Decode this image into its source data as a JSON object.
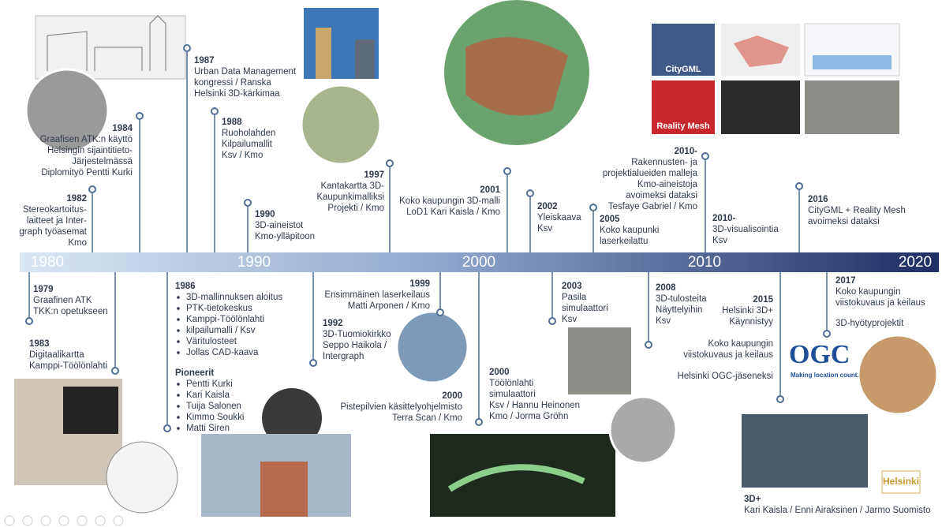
{
  "axis": {
    "decades": [
      "1980",
      "1990",
      "2000",
      "2010",
      "2020"
    ]
  },
  "events_above": [
    {
      "year": "1982",
      "lines": [
        "Stereokartoitus-",
        "laitteet ja Inter-",
        "graph työasemat",
        "Kmo"
      ]
    },
    {
      "year": "1984",
      "lines": [
        "Graafisen ATK:n käyttö",
        "Helsingin sijaintitieto-",
        "Järjestelmässä",
        "Diplomityö Pentti Kurki"
      ]
    },
    {
      "year": "1987",
      "lines": [
        "Urban Data Management",
        "kongressi /  Ranska",
        "Helsinki 3D-kärkimaa"
      ]
    },
    {
      "year": "1988",
      "lines": [
        "Ruoholahden",
        "Kilpailumallit",
        "Ksv / Kmo"
      ]
    },
    {
      "year": "1990",
      "lines": [
        "3D-aineistot",
        "Kmo-ylläpitoon"
      ]
    },
    {
      "year": "1997",
      "lines": [
        "Kantakartta 3D-",
        "Kaupunkimalliksi",
        "Projekti / Kmo"
      ]
    },
    {
      "year": "2001",
      "lines": [
        "Koko kaupungin 3D-malli",
        "LoD1  Kari Kaisla / Kmo"
      ]
    },
    {
      "year": "2002",
      "lines": [
        "Yleiskaava",
        "Ksv"
      ]
    },
    {
      "year": "2005",
      "lines": [
        "Koko kaupunki",
        "laserkeilattu"
      ]
    },
    {
      "year": "2010-",
      "lines": [
        "Rakennusten- ja",
        "projektialueiden malleja",
        "Kmo-aineistoja",
        "avoimeksi dataksi",
        "Tesfaye Gabriel / Kmo"
      ]
    },
    {
      "year": "2010-",
      "lines": [
        "3D-visualisointia",
        "Ksv"
      ]
    },
    {
      "year": "2016",
      "lines": [
        "CityGML + Reality Mesh",
        "avoimeksi dataksi"
      ]
    }
  ],
  "events_below": [
    {
      "year": "1979",
      "lines": [
        "Graafinen ATK",
        "TKK:n opetukseen"
      ]
    },
    {
      "year": "1983",
      "lines": [
        "Digitaalikartta",
        "Kamppi-Töölönlahti"
      ]
    },
    {
      "year": "1992",
      "lines": [
        "3D-Tuomiokirkko",
        "Seppo Haikola /",
        "Intergraph"
      ]
    },
    {
      "year": "1999",
      "lines": [
        "Ensimmäinen laserkeilaus",
        "Matti Arponen / Kmo"
      ]
    },
    {
      "year": "2000",
      "lines": [
        "Pistepilvien käsittelyohjelmisto",
        "Terra Scan / Kmo"
      ]
    },
    {
      "year": "2000",
      "lines": [
        "Töölönlahti",
        "simulaattori",
        "Ksv / Hannu Heinonen",
        "Kmo / Jorma Gröhn"
      ]
    },
    {
      "year": "2003",
      "lines": [
        "Pasila",
        "simulaattori",
        "Ksv"
      ]
    },
    {
      "year": "2008",
      "lines": [
        "3D-tulosteita",
        "Näyttelyihin",
        "Ksv"
      ]
    },
    {
      "year": "2015",
      "lines": [
        "Helsinki 3D+",
        "Käynnistyy"
      ]
    },
    {
      "year": "2017",
      "lines": [
        "Koko kaupungin",
        "viistokuvaus ja keilaus"
      ]
    },
    {
      "year": "3D+",
      "lines": [
        "Kari Kaisla / Enni Airaksinen / Jarmo Suomisto"
      ]
    }
  ],
  "notes_below": [
    {
      "lines": [
        "Koko kaupungin",
        "viistokuvaus ja keilaus"
      ]
    },
    {
      "lines": [
        "Helsinki OGC-jäseneksi"
      ]
    },
    {
      "lines": [
        "3D-hyötyprojektit"
      ]
    }
  ],
  "event_1986": {
    "year": "1986",
    "bullets": [
      "3D-mallinnuksen aloitus",
      "PTK-tietokeskus",
      "Kamppi-Töölönlahti",
      "kilpailumalli / Ksv",
      "Väritulosteet",
      "Jollas CAD-kaava"
    ],
    "pioneers_title": "Pioneerit",
    "pioneers": [
      "Pentti Kurki",
      "Kari Kaisla",
      "Tuija Salonen",
      "Kimmo Soukki",
      "Matti Siren"
    ]
  },
  "logos": {
    "citygml": "CityGML",
    "reality_mesh": "Reality Mesh",
    "ogc": "OGC",
    "ogc_tagline": "Making location count.",
    "helsinki": "Helsinki"
  }
}
